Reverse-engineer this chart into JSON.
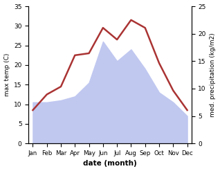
{
  "months": [
    "Jan",
    "Feb",
    "Mar",
    "Apr",
    "May",
    "Jun",
    "Jul",
    "Aug",
    "Sep",
    "Oct",
    "Nov",
    "Dec"
  ],
  "temp": [
    8.5,
    12.5,
    14.5,
    22.5,
    23.0,
    29.5,
    26.5,
    31.5,
    29.5,
    20.5,
    13.5,
    8.5
  ],
  "precip_left": [
    10.5,
    10.5,
    11.0,
    12.0,
    15.5,
    26.0,
    21.0,
    24.0,
    19.0,
    13.0,
    10.5,
    7.0
  ],
  "precip_right_ticks": [
    0,
    5,
    10,
    15,
    20,
    25
  ],
  "temp_color": "#aa3333",
  "precip_fill_color": "#c0c8f0",
  "precip_edge_color": "#c0c8f0",
  "temp_ylim": [
    0,
    35
  ],
  "precip_ylim": [
    0,
    35
  ],
  "right_ylim": [
    0,
    25
  ],
  "right_yticks": [
    0,
    5,
    10,
    15,
    20,
    25
  ],
  "temp_yticks": [
    0,
    5,
    10,
    15,
    20,
    25,
    30,
    35
  ],
  "ylabel_left": "max temp (C)",
  "ylabel_right": "med. precipitation (kg/m2)",
  "xlabel": "date (month)",
  "background_color": "#ffffff",
  "temp_linewidth": 1.8
}
